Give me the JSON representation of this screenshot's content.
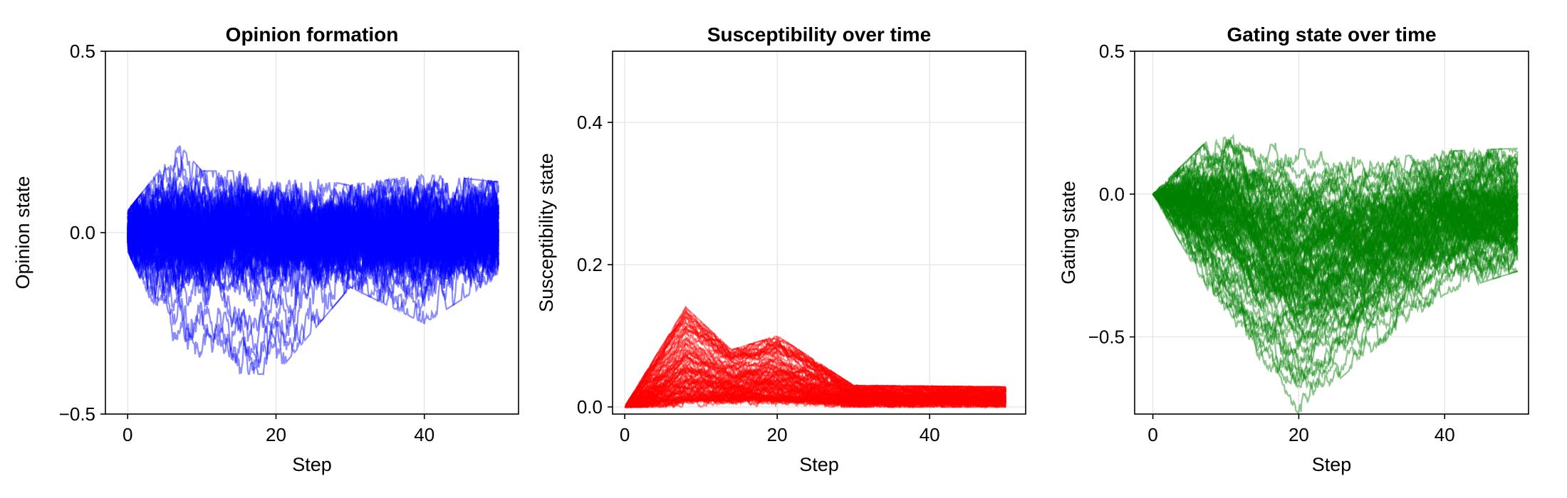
{
  "chart_data": [
    {
      "type": "line",
      "title": "Opinion formation",
      "xlabel": "Step",
      "ylabel": "Opinion state",
      "xlim": [
        -3,
        52.7
      ],
      "ylim": [
        -0.5,
        0.5
      ],
      "xticks": [
        0,
        20,
        40
      ],
      "yticks": [
        -0.5,
        0.0,
        0.5
      ],
      "xtick_labels": [
        "0",
        "20",
        "40"
      ],
      "ytick_labels": [
        "−0.5",
        "0.0",
        "0.5"
      ],
      "grid": true,
      "color": "#0000ff",
      "n_series": 100,
      "n_steps": 50,
      "summary": [
        {
          "step": 0,
          "min": -0.05,
          "mean": 0.0,
          "max": 0.06
        },
        {
          "step": 7,
          "min": -0.37,
          "mean": 0.0,
          "max": 0.24
        },
        {
          "step": 10,
          "min": -0.39,
          "mean": 0.0,
          "max": 0.17
        },
        {
          "step": 20,
          "min": -0.39,
          "mean": 0.0,
          "max": 0.17
        },
        {
          "step": 30,
          "min": -0.15,
          "mean": 0.0,
          "max": 0.13
        },
        {
          "step": 40,
          "min": -0.25,
          "mean": 0.0,
          "max": 0.16
        },
        {
          "step": 50,
          "min": -0.12,
          "mean": 0.0,
          "max": 0.14
        }
      ]
    },
    {
      "type": "line",
      "title": "Susceptibility over time",
      "xlabel": "Step",
      "ylabel": "Susceptibility state",
      "xlim": [
        -1.6,
        52.6
      ],
      "ylim": [
        -0.01,
        0.5
      ],
      "xticks": [
        0,
        20,
        40
      ],
      "yticks": [
        0.0,
        0.2,
        0.4
      ],
      "xtick_labels": [
        "0",
        "20",
        "40"
      ],
      "ytick_labels": [
        "0.0",
        "0.2",
        "0.4"
      ],
      "grid": true,
      "color": "#ff0000",
      "n_series": 100,
      "n_steps": 50,
      "summary": [
        {
          "step": 0,
          "min": 0.0,
          "mean": 0.0,
          "max": 0.0
        },
        {
          "step": 8,
          "min": 0.01,
          "mean": 0.06,
          "max": 0.14
        },
        {
          "step": 14,
          "min": 0.01,
          "mean": 0.04,
          "max": 0.08
        },
        {
          "step": 20,
          "min": 0.01,
          "mean": 0.05,
          "max": 0.1
        },
        {
          "step": 30,
          "min": 0.005,
          "mean": 0.015,
          "max": 0.03
        },
        {
          "step": 50,
          "min": 0.005,
          "mean": 0.013,
          "max": 0.028
        }
      ]
    },
    {
      "type": "line",
      "title": "Gating state over time",
      "xlabel": "Step",
      "ylabel": "Gating state",
      "xlim": [
        -2.5,
        51.5
      ],
      "ylim": [
        -0.77,
        0.5
      ],
      "xticks": [
        0,
        20,
        40
      ],
      "yticks": [
        -0.5,
        0.0,
        0.5
      ],
      "xtick_labels": [
        "0",
        "20",
        "40"
      ],
      "ytick_labels": [
        "−0.5",
        "0.0",
        "0.5"
      ],
      "grid": true,
      "color": "#008000",
      "n_series": 100,
      "n_steps": 50,
      "summary": [
        {
          "step": 0,
          "min": 0.0,
          "mean": 0.0,
          "max": 0.0
        },
        {
          "step": 10,
          "min": -0.45,
          "mean": -0.05,
          "max": 0.25
        },
        {
          "step": 20,
          "min": -0.77,
          "mean": -0.2,
          "max": 0.16
        },
        {
          "step": 30,
          "min": -0.55,
          "mean": -0.15,
          "max": 0.12
        },
        {
          "step": 40,
          "min": -0.35,
          "mean": -0.05,
          "max": 0.15
        },
        {
          "step": 50,
          "min": -0.27,
          "mean": -0.05,
          "max": 0.16
        }
      ]
    }
  ]
}
